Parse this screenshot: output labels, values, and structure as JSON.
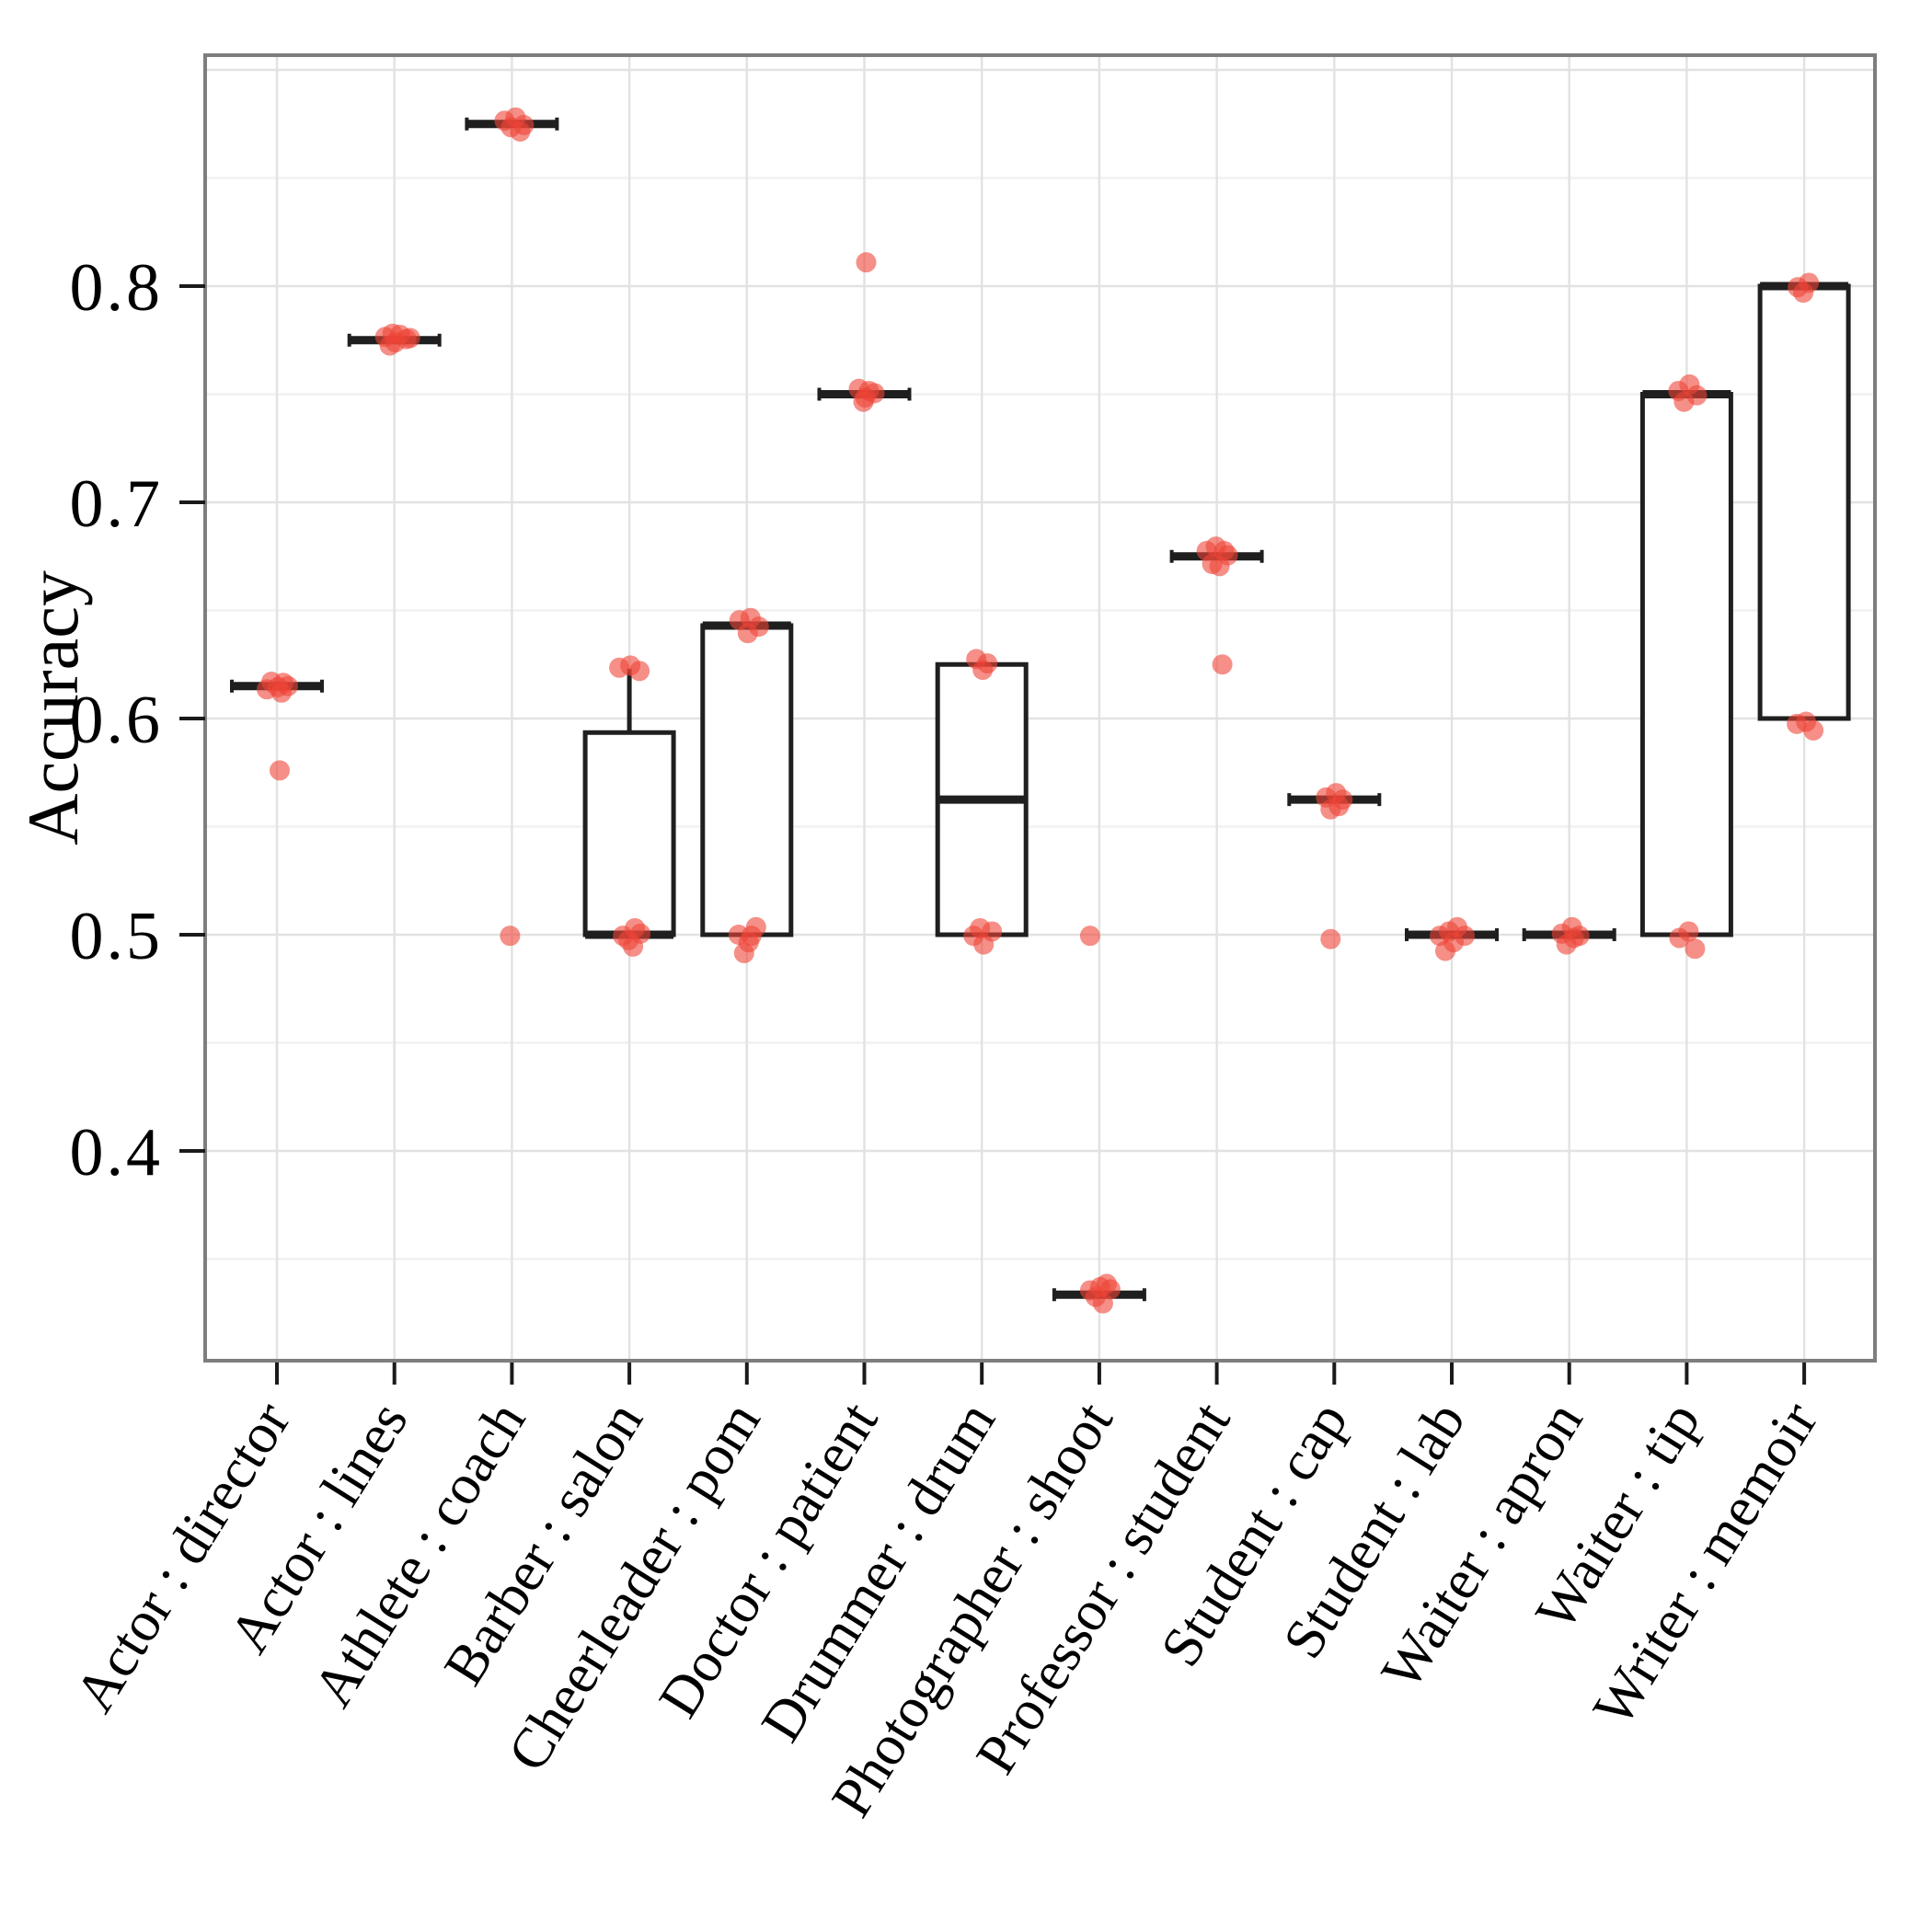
{
  "chart_data": {
    "type": "box",
    "title": "",
    "xlabel": "",
    "ylabel": "Accuracy",
    "ylim": [
      0.303,
      0.907
    ],
    "yticks": [
      0.8,
      0.7,
      0.6,
      0.5,
      0.4
    ],
    "ytick_labels": [
      "0.8",
      "0.7",
      "0.6",
      "0.5",
      "0.4"
    ],
    "grid": {
      "minor_step": 0.05,
      "minor_from": 0.35,
      "minor_to": 0.9,
      "major_step": 0.1,
      "major_from": 0.4,
      "major_to": 0.9,
      "vertical_on_categories": true
    },
    "legend": "none",
    "categories": [
      "Actor : director",
      "Actor : lines",
      "Athlete : coach",
      "Barber : salon",
      "Cheerleader : pom",
      "Doctor : patient",
      "Drummer : drum",
      "Photographer : shoot",
      "Professor : student",
      "Student : cap",
      "Student : lab",
      "Waiter : apron",
      "Waiter : tip",
      "Writer : memoir"
    ],
    "series": [
      {
        "label": "Actor : director",
        "box": {
          "q1": 0.615,
          "median": 0.615,
          "q3": 0.615,
          "whisker_low": 0.615,
          "whisker_high": 0.615
        },
        "points": [
          [
            -6,
            0.617
          ],
          [
            7,
            0.6165
          ],
          [
            1,
            0.6145
          ],
          [
            -11,
            0.6135
          ],
          [
            5,
            0.612
          ],
          [
            12,
            0.615
          ],
          [
            3,
            0.576
          ]
        ]
      },
      {
        "label": "Actor : lines",
        "box": {
          "q1": 0.775,
          "median": 0.775,
          "q3": 0.775,
          "whisker_low": 0.775,
          "whisker_high": 0.775
        },
        "points": [
          [
            -10,
            0.7765
          ],
          [
            -2,
            0.778
          ],
          [
            6,
            0.7775
          ],
          [
            13,
            0.7755
          ],
          [
            1,
            0.774
          ],
          [
            -5,
            0.7725
          ],
          [
            17,
            0.776
          ]
        ]
      },
      {
        "label": "Athlete : coach",
        "box": {
          "q1": 0.875,
          "median": 0.875,
          "q3": 0.875,
          "whisker_low": 0.875,
          "whisker_high": 0.875
        },
        "points": [
          [
            -8,
            0.8765
          ],
          [
            4,
            0.878
          ],
          [
            13,
            0.8745
          ],
          [
            -1,
            0.8735
          ],
          [
            9,
            0.8715
          ],
          [
            -2,
            0.4995
          ]
        ]
      },
      {
        "label": "Barber : salon",
        "box": {
          "q1": 0.5,
          "median": 0.5,
          "q3": 0.5935,
          "whisker_low": 0.5,
          "whisker_high": 0.623
        },
        "points": [
          [
            -11,
            0.6235
          ],
          [
            1,
            0.6245
          ],
          [
            11,
            0.622
          ],
          [
            -7,
            0.4995
          ],
          [
            4,
            0.4945
          ],
          [
            12,
            0.5005
          ],
          [
            -1,
            0.4975
          ],
          [
            6,
            0.503
          ]
        ]
      },
      {
        "label": "Cheerleader : pom",
        "box": {
          "q1": 0.5,
          "median": 0.643,
          "q3": 0.643,
          "whisker_low": 0.5,
          "whisker_high": 0.643
        },
        "points": [
          [
            -8,
            0.6455
          ],
          [
            4,
            0.6465
          ],
          [
            13,
            0.6425
          ],
          [
            1,
            0.6395
          ],
          [
            -9,
            0.5
          ],
          [
            2,
            0.4965
          ],
          [
            10,
            0.5035
          ],
          [
            -3,
            0.4915
          ],
          [
            5,
            0.4995
          ]
        ]
      },
      {
        "label": "Doctor : patient",
        "box": {
          "q1": 0.75,
          "median": 0.75,
          "q3": 0.75,
          "whisker_low": 0.75,
          "whisker_high": 0.75
        },
        "points": [
          [
            -6,
            0.7525
          ],
          [
            5,
            0.7515
          ],
          [
            1,
            0.7485
          ],
          [
            11,
            0.7505
          ],
          [
            -1,
            0.7465
          ],
          [
            2,
            0.811
          ]
        ]
      },
      {
        "label": "Drummer : drum",
        "box": {
          "q1": 0.5,
          "median": 0.5625,
          "q3": 0.625,
          "whisker_low": 0.5,
          "whisker_high": 0.625
        },
        "points": [
          [
            -6,
            0.6275
          ],
          [
            6,
            0.6255
          ],
          [
            1,
            0.6225
          ],
          [
            -9,
            0.4995
          ],
          [
            2,
            0.4955
          ],
          [
            11,
            0.5015
          ],
          [
            -2,
            0.503
          ]
        ]
      },
      {
        "label": "Photographer : shoot",
        "box": {
          "q1": 0.3335,
          "median": 0.3335,
          "q3": 0.3335,
          "whisker_low": 0.3335,
          "whisker_high": 0.3335
        },
        "points": [
          [
            -10,
            0.3355
          ],
          [
            1,
            0.337
          ],
          [
            8,
            0.3385
          ],
          [
            -4,
            0.3325
          ],
          [
            4,
            0.3295
          ],
          [
            12,
            0.336
          ],
          [
            -10,
            0.4995
          ]
        ]
      },
      {
        "label": "Professor : student",
        "box": {
          "q1": 0.675,
          "median": 0.675,
          "q3": 0.675,
          "whisker_low": 0.675,
          "whisker_high": 0.675
        },
        "points": [
          [
            -11,
            0.6775
          ],
          [
            -1,
            0.6795
          ],
          [
            8,
            0.6775
          ],
          [
            -5,
            0.6715
          ],
          [
            3,
            0.6705
          ],
          [
            12,
            0.6755
          ],
          [
            6,
            0.625
          ]
        ]
      },
      {
        "label": "Student : cap",
        "box": {
          "q1": 0.5625,
          "median": 0.5625,
          "q3": 0.5625,
          "whisker_low": 0.5625,
          "whisker_high": 0.5625
        },
        "points": [
          [
            -9,
            0.5635
          ],
          [
            2,
            0.5655
          ],
          [
            9,
            0.5625
          ],
          [
            -4,
            0.558
          ],
          [
            5,
            0.5595
          ],
          [
            -4,
            0.498
          ]
        ]
      },
      {
        "label": "Student : lab",
        "box": {
          "q1": 0.5,
          "median": 0.5,
          "q3": 0.5,
          "whisker_low": 0.5,
          "whisker_high": 0.5
        },
        "points": [
          [
            -13,
            0.4995
          ],
          [
            -3,
            0.5015
          ],
          [
            6,
            0.5035
          ],
          [
            14,
            0.4995
          ],
          [
            2,
            0.4965
          ],
          [
            -7,
            0.4925
          ]
        ]
      },
      {
        "label": "Waiter : apron",
        "box": {
          "q1": 0.5,
          "median": 0.5,
          "q3": 0.5,
          "whisker_low": 0.5,
          "whisker_high": 0.5
        },
        "points": [
          [
            -8,
            0.5005
          ],
          [
            3,
            0.5035
          ],
          [
            11,
            0.4995
          ],
          [
            -3,
            0.4955
          ],
          [
            5,
            0.4985
          ]
        ]
      },
      {
        "label": "Waiter : tip",
        "box": {
          "q1": 0.5,
          "median": 0.75,
          "q3": 0.75,
          "whisker_low": 0.5,
          "whisker_high": 0.75
        },
        "points": [
          [
            -9,
            0.7515
          ],
          [
            3,
            0.7545
          ],
          [
            11,
            0.7495
          ],
          [
            -3,
            0.7465
          ],
          [
            -8,
            0.4985
          ],
          [
            2,
            0.5015
          ],
          [
            9,
            0.4935
          ]
        ]
      },
      {
        "label": "Writer : memoir",
        "box": {
          "q1": 0.6,
          "median": 0.8,
          "q3": 0.8,
          "whisker_low": 0.6,
          "whisker_high": 0.8
        },
        "points": [
          [
            -7,
            0.7995
          ],
          [
            5,
            0.8015
          ],
          [
            -1,
            0.797
          ],
          [
            -8,
            0.5975
          ],
          [
            2,
            0.5985
          ],
          [
            10,
            0.5945
          ]
        ]
      }
    ]
  },
  "colors": {
    "point_fill": "#ee4437",
    "point_opacity": 0.6,
    "box_stroke": "#1f1f1f",
    "grid_major": "#e2e2e2",
    "grid_minor": "#f1f1f1",
    "panel_border": "#7e7e7e",
    "tick": "#1a1a1a",
    "background": "#ffffff"
  }
}
